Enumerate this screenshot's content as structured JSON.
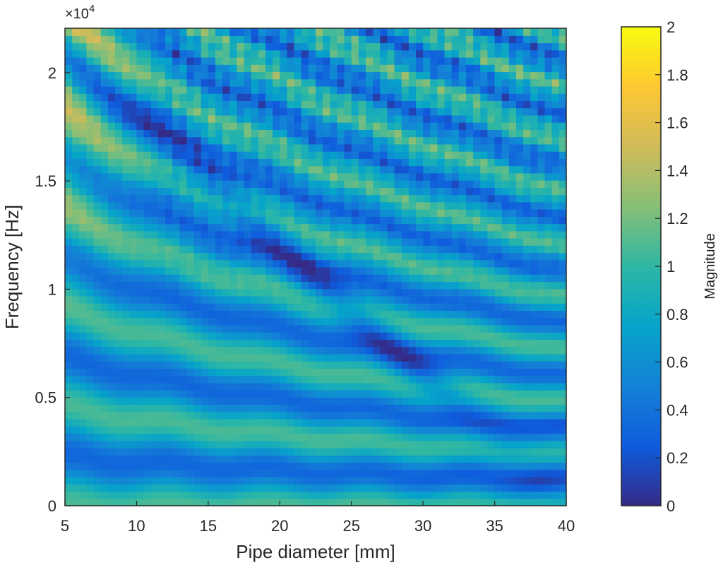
{
  "chart_data": {
    "type": "heatmap",
    "title": "",
    "xlabel": "Pipe diameter [mm]",
    "ylabel": "Frequency [Hz]",
    "xlim": [
      5,
      40
    ],
    "ylim": [
      0,
      22050
    ],
    "x_ticks": [
      5,
      10,
      15,
      20,
      25,
      30,
      35,
      40
    ],
    "y_ticks": [
      0,
      5000,
      10000,
      15000,
      20000
    ],
    "y_tick_labels": [
      "0",
      "0.5",
      "1",
      "1.5",
      "2"
    ],
    "y_exponent_label": "×10^4",
    "y_exponent_base": "×10",
    "y_exponent_power": "4",
    "colorbar": {
      "label": "Magnitude",
      "limits": [
        0,
        2
      ],
      "ticks": [
        0,
        0.2,
        0.4,
        0.6,
        0.8,
        1,
        1.2,
        1.4,
        1.6,
        1.8,
        2
      ],
      "tick_labels": [
        "0",
        "0.2",
        "0.4",
        "0.6",
        "0.8",
        "1",
        "1.2",
        "1.4",
        "1.6",
        "1.8",
        "2"
      ],
      "colormap": "parula"
    },
    "grid": false,
    "colormap_stops": [
      "#352a87",
      "#0f5cdd",
      "#1481d6",
      "#06a4ca",
      "#2eb7a4",
      "#87bf77",
      "#d1bb59",
      "#fec832",
      "#f9fb0e"
    ]
  }
}
